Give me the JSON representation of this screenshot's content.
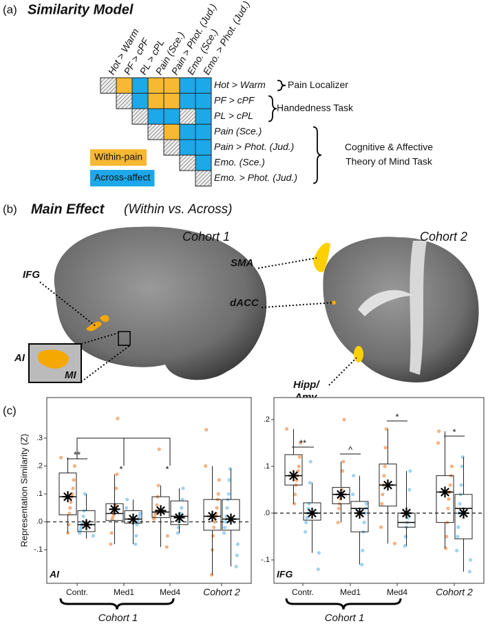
{
  "panel_a": {
    "label": "(a)",
    "title": "Similarity Model",
    "conditions": [
      "Hot > Warm",
      "PF > cPF",
      "PL > cPL",
      "Pain (Sce.)",
      "Pain > Phot. (Jud.)",
      "Emo. (Sce.)",
      "Emo. > Phot. (Jud.)"
    ],
    "cells": [
      [
        "hatch",
        "within",
        "across",
        "within",
        "within",
        "across",
        "across"
      ],
      [
        null,
        "hatch",
        "across",
        "within",
        "within",
        "across",
        "across"
      ],
      [
        null,
        null,
        "hatch",
        "across",
        "across",
        "hatch",
        "across"
      ],
      [
        null,
        null,
        null,
        "hatch",
        "within",
        "across",
        "across"
      ],
      [
        null,
        null,
        null,
        null,
        "hatch",
        "across",
        "across"
      ],
      [
        null,
        null,
        null,
        null,
        null,
        "hatch",
        "across"
      ],
      [
        null,
        null,
        null,
        null,
        null,
        null,
        "hatch"
      ]
    ],
    "groups": [
      {
        "lines": [
          "Pain Localizer"
        ]
      },
      {
        "lines": [
          "Handedness Task"
        ]
      },
      {
        "lines": [
          "Cognitive & Affective",
          "Theory of Mind Task"
        ]
      }
    ],
    "legend": [
      {
        "key": "within",
        "label": "Within-pain",
        "color": "#f7b833"
      },
      {
        "key": "across",
        "label": "Across-affect",
        "color": "#1da8ea"
      }
    ]
  },
  "panel_b": {
    "label": "(b)",
    "title": "Main Effect",
    "subtitle": "(Within vs. Across)",
    "cohorts": [
      "Cohort 1",
      "Cohort 2"
    ],
    "regions": [
      "IFG",
      "AI",
      "MI",
      "SMA",
      "dACC",
      "Hipp/",
      "Amy"
    ]
  },
  "panel_c": {
    "label": "(c)",
    "group_label": "Cohort 1"
  },
  "chart_data": [
    {
      "type": "box",
      "ylabel": "Representation Similarity (Z)",
      "panel_label": "AI",
      "categories": [
        "Contr.",
        "Med1",
        "Med4",
        "Cohort 2"
      ],
      "ylim": [
        -0.22,
        0.445
      ],
      "yticks": [
        {
          "value": -0.1,
          "label": "-.1"
        },
        {
          "value": 0,
          "label": ".0"
        },
        {
          "value": 0.1,
          "label": ".1"
        },
        {
          "value": 0.2,
          "label": ".2"
        },
        {
          "value": 0.3,
          "label": ".3"
        }
      ],
      "ref_line": 0,
      "significance": [
        "**",
        "*",
        "*"
      ],
      "series": [
        {
          "color": "#f4a36c",
          "boxes": [
            {
              "whislo": -0.04,
              "q1": 0.025,
              "med": 0.09,
              "q3": 0.175,
              "whishi": 0.23,
              "mean": 0.09,
              "points": [
                0.23,
                0.2,
                0.15,
                0.12,
                0.1,
                0.09,
                0.07,
                0.05,
                0.03,
                -0.01,
                -0.04
              ]
            },
            {
              "whislo": -0.08,
              "q1": 0.005,
              "med": 0.03,
              "q3": 0.065,
              "whishi": 0.17,
              "mean": 0.045,
              "points": [
                0.37,
                0.17,
                0.12,
                0.06,
                0.05,
                0.03,
                0.02,
                0.01,
                -0.04,
                -0.08
              ]
            },
            {
              "whislo": -0.09,
              "q1": 0.015,
              "med": 0.035,
              "q3": 0.09,
              "whishi": 0.13,
              "mean": 0.04,
              "points": [
                0.26,
                0.13,
                0.09,
                0.06,
                0.04,
                0.03,
                0.02,
                0.01,
                -0.05,
                -0.09
              ]
            },
            {
              "whislo": -0.19,
              "q1": -0.03,
              "med": 0.02,
              "q3": 0.08,
              "whishi": 0.2,
              "mean": 0.02,
              "points": [
                0.33,
                0.2,
                0.15,
                0.1,
                0.08,
                0.05,
                0.03,
                0.02,
                0,
                -0.02,
                -0.05,
                -0.1,
                -0.19
              ]
            }
          ]
        },
        {
          "color": "#8fcbee",
          "boxes": [
            {
              "whislo": -0.06,
              "q1": -0.035,
              "med": -0.01,
              "q3": 0.04,
              "whishi": 0.1,
              "mean": -0.01,
              "points": [
                0.1,
                0.04,
                0.02,
                0,
                -0.01,
                -0.02,
                -0.03,
                -0.04,
                -0.05
              ]
            },
            {
              "whislo": -0.08,
              "q1": -0.005,
              "med": 0.01,
              "q3": 0.04,
              "whishi": 0.08,
              "mean": 0.01,
              "points": [
                0.08,
                0.05,
                0.03,
                0.02,
                0.01,
                0,
                -0.01,
                -0.05,
                -0.08
              ]
            },
            {
              "whislo": -0.04,
              "q1": -0.01,
              "med": 0.02,
              "q3": 0.075,
              "whishi": 0.12,
              "mean": 0.015,
              "points": [
                0.12,
                0.08,
                0.05,
                0.03,
                0.02,
                0,
                -0.02,
                -0.04
              ]
            },
            {
              "whislo": -0.16,
              "q1": -0.03,
              "med": 0.01,
              "q3": 0.08,
              "whishi": 0.19,
              "mean": 0.01,
              "points": [
                0.19,
                0.15,
                0.1,
                0.08,
                0.05,
                0.02,
                0,
                -0.02,
                -0.04,
                -0.08,
                -0.12,
                -0.16
              ]
            }
          ]
        }
      ]
    },
    {
      "type": "box",
      "panel_label": "IFG",
      "categories": [
        "Contr.",
        "Med1",
        "Med4",
        "Cohort 2"
      ],
      "ylim": [
        -0.15,
        0.247
      ],
      "yticks": [
        {
          "value": -0.1,
          "label": "-.1"
        },
        {
          "value": 0,
          "label": ".0"
        },
        {
          "value": 0.1,
          "label": ".1"
        },
        {
          "value": 0.2,
          "label": ".2"
        }
      ],
      "ref_line": 0,
      "significance": [
        "**",
        "^",
        "*",
        "*"
      ],
      "series": [
        {
          "color": "#f4a36c",
          "boxes": [
            {
              "whislo": 0.02,
              "q1": 0.06,
              "med": 0.08,
              "q3": 0.125,
              "whishi": 0.18,
              "mean": 0.08,
              "points": [
                0.18,
                0.15,
                0.12,
                0.1,
                0.09,
                0.08,
                0.07,
                0.06,
                0.04,
                0.02
              ]
            },
            {
              "whislo": -0.02,
              "q1": 0.02,
              "med": 0.04,
              "q3": 0.055,
              "whishi": 0.11,
              "mean": 0.04,
              "points": [
                0.2,
                0.11,
                0.09,
                0.05,
                0.04,
                0.03,
                0.02,
                0.01,
                -0.02
              ]
            },
            {
              "whislo": -0.065,
              "q1": 0.015,
              "med": 0.06,
              "q3": 0.105,
              "whishi": 0.18,
              "mean": 0.06,
              "points": [
                0.18,
                0.14,
                0.1,
                0.08,
                0.06,
                0.04,
                0.02,
                -0.03,
                -0.065
              ]
            },
            {
              "whislo": -0.075,
              "q1": -0.02,
              "med": 0.045,
              "q3": 0.08,
              "whishi": 0.175,
              "mean": 0.045,
              "points": [
                0.175,
                0.15,
                0.1,
                0.08,
                0.06,
                0.045,
                0.03,
                0.01,
                -0.02,
                -0.05,
                -0.075
              ]
            }
          ]
        },
        {
          "color": "#8fcbee",
          "boxes": [
            {
              "whislo": -0.085,
              "q1": -0.015,
              "med": 0,
              "q3": 0.022,
              "whishi": 0.065,
              "mean": 0,
              "points": [
                0.11,
                0.065,
                0.02,
                0.01,
                0,
                -0.01,
                -0.02,
                -0.04,
                -0.085,
                -0.12
              ]
            },
            {
              "whislo": -0.11,
              "q1": -0.04,
              "med": 0.01,
              "q3": 0.025,
              "whishi": 0.08,
              "mean": 0,
              "points": [
                0.08,
                0.04,
                0.02,
                0.01,
                0,
                -0.02,
                -0.04,
                -0.08,
                -0.11
              ]
            },
            {
              "whislo": -0.07,
              "q1": -0.03,
              "med": -0.02,
              "q3": 0,
              "whishi": 0.09,
              "mean": 0,
              "points": [
                0.09,
                0.05,
                0,
                -0.01,
                -0.02,
                -0.03,
                -0.05,
                -0.07
              ]
            },
            {
              "whislo": -0.125,
              "q1": -0.055,
              "med": 0.01,
              "q3": 0.04,
              "whishi": 0.12,
              "mean": 0,
              "points": [
                0.12,
                0.1,
                0.06,
                0.04,
                0.02,
                0,
                -0.03,
                -0.05,
                -0.08,
                -0.1,
                -0.125
              ]
            }
          ]
        }
      ]
    }
  ]
}
